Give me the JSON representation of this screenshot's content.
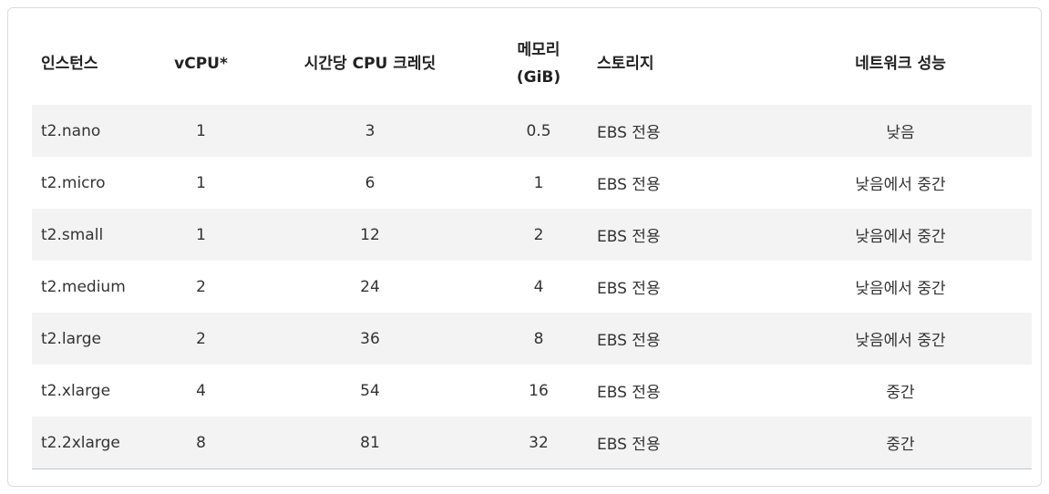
{
  "table": {
    "headers": {
      "instance": "인스턴스",
      "vcpu": "vCPU*",
      "cpu_credits": "시간당 CPU 크레딧",
      "memory_line1": "메모리",
      "memory_line2": "(GiB)",
      "storage": "스토리지",
      "network": "네트워크 성능"
    },
    "rows": [
      [
        "t2.nano",
        "1",
        "3",
        "0.5",
        "EBS 전용",
        "낮음"
      ],
      [
        "t2.micro",
        "1",
        "6",
        "1",
        "EBS 전용",
        "낮음에서 중간"
      ],
      [
        "t2.small",
        "1",
        "12",
        "2",
        "EBS 전용",
        "낮음에서 중간"
      ],
      [
        "t2.medium",
        "2",
        "24",
        "4",
        "EBS 전용",
        "낮음에서 중간"
      ],
      [
        "t2.large",
        "2",
        "36",
        "8",
        "EBS 전용",
        "낮음에서 중간"
      ],
      [
        "t2.xlarge",
        "4",
        "54",
        "16",
        "EBS 전용",
        "중간"
      ],
      [
        "t2.2xlarge",
        "8",
        "81",
        "32",
        "EBS 전용",
        "중간"
      ]
    ]
  },
  "colors": {
    "row_shade": "#f3f3f3",
    "border": "#dcdcdc",
    "bottom_rule": "#bfc6cf"
  }
}
